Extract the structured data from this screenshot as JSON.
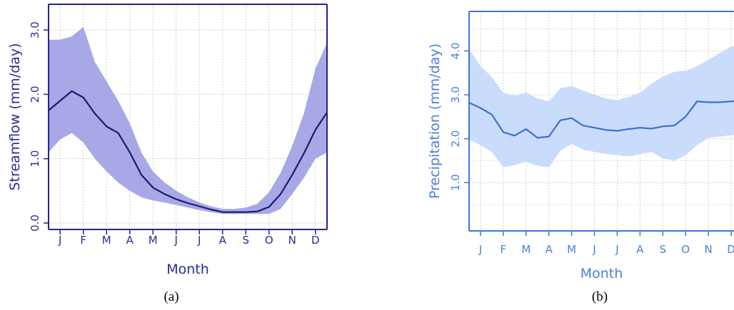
{
  "captions": [
    "(a)",
    "(b)"
  ],
  "chart_data": [
    {
      "type": "area",
      "xlabel": "Month",
      "ylabel": "Streamflow (mm/day)",
      "categories": [
        "J",
        "F",
        "M",
        "A",
        "M",
        "J",
        "J",
        "A",
        "S",
        "O",
        "N",
        "D"
      ],
      "yticks": [
        "0.0",
        "1.0",
        "2.0",
        "3.0"
      ],
      "ylim": [
        -0.1,
        3.4
      ],
      "xlim": [
        0.5,
        12.5
      ],
      "grid": true,
      "colors": {
        "line": "#1b1b6e",
        "band": "#a3a3e6",
        "axis": "#23238e",
        "text": "#2b2b99"
      },
      "x": [
        0.5,
        1.0,
        1.5,
        2.0,
        2.5,
        3.0,
        3.5,
        4.0,
        4.5,
        5.0,
        5.5,
        6.0,
        6.5,
        7.0,
        7.5,
        8.0,
        8.5,
        9.0,
        9.5,
        10.0,
        10.5,
        11.0,
        11.5,
        12.0,
        12.5
      ],
      "median": [
        1.75,
        1.9,
        2.05,
        1.95,
        1.7,
        1.5,
        1.4,
        1.1,
        0.75,
        0.55,
        0.45,
        0.37,
        0.31,
        0.26,
        0.21,
        0.17,
        0.17,
        0.17,
        0.18,
        0.25,
        0.45,
        0.75,
        1.08,
        1.45,
        1.72
      ],
      "lower": [
        1.1,
        1.3,
        1.4,
        1.25,
        1.0,
        0.8,
        0.63,
        0.5,
        0.4,
        0.35,
        0.32,
        0.28,
        0.24,
        0.2,
        0.17,
        0.14,
        0.14,
        0.14,
        0.14,
        0.14,
        0.22,
        0.45,
        0.7,
        1.0,
        1.1
      ],
      "upper": [
        2.85,
        2.85,
        2.9,
        3.05,
        2.5,
        2.2,
        1.9,
        1.55,
        1.1,
        0.8,
        0.63,
        0.5,
        0.4,
        0.32,
        0.26,
        0.22,
        0.22,
        0.24,
        0.3,
        0.48,
        0.78,
        1.2,
        1.7,
        2.4,
        2.8
      ]
    },
    {
      "type": "area",
      "xlabel": "Month",
      "ylabel": "Precipitation (mm/day)",
      "categories": [
        "J",
        "F",
        "M",
        "A",
        "M",
        "J",
        "J",
        "A",
        "S",
        "O",
        "N",
        "D"
      ],
      "yticks": [
        "1.0",
        "2.0",
        "3.0",
        "4.0"
      ],
      "ylim": [
        -0.1,
        4.9
      ],
      "xlim": [
        0.5,
        12.5
      ],
      "grid": true,
      "colors": {
        "line": "#3b6fd6",
        "band": "#c7dafc",
        "axis": "#3f74db",
        "text": "#4a7fe0"
      },
      "x": [
        0.5,
        1.0,
        1.5,
        2.0,
        2.5,
        3.0,
        3.5,
        4.0,
        4.5,
        5.0,
        5.5,
        6.0,
        6.5,
        7.0,
        7.5,
        8.0,
        8.5,
        9.0,
        9.5,
        10.0,
        10.5,
        11.0,
        11.5,
        12.0,
        12.5
      ],
      "median": [
        2.82,
        2.7,
        2.55,
        2.15,
        2.07,
        2.22,
        2.02,
        2.05,
        2.42,
        2.47,
        2.3,
        2.25,
        2.2,
        2.18,
        2.22,
        2.25,
        2.23,
        2.28,
        2.3,
        2.5,
        2.85,
        2.83,
        2.83,
        2.85,
        2.88
      ],
      "lower": [
        1.98,
        1.85,
        1.7,
        1.35,
        1.4,
        1.48,
        1.38,
        1.35,
        1.72,
        1.88,
        1.75,
        1.7,
        1.65,
        1.62,
        1.6,
        1.65,
        1.7,
        1.55,
        1.5,
        1.62,
        1.85,
        2.02,
        2.05,
        2.08,
        2.1
      ],
      "upper": [
        4.05,
        3.65,
        3.4,
        3.05,
        2.98,
        3.05,
        2.92,
        2.85,
        3.15,
        3.2,
        3.1,
        3.0,
        2.92,
        2.88,
        2.95,
        3.05,
        3.25,
        3.42,
        3.52,
        3.55,
        3.65,
        3.8,
        3.95,
        4.1,
        4.15
      ]
    }
  ]
}
